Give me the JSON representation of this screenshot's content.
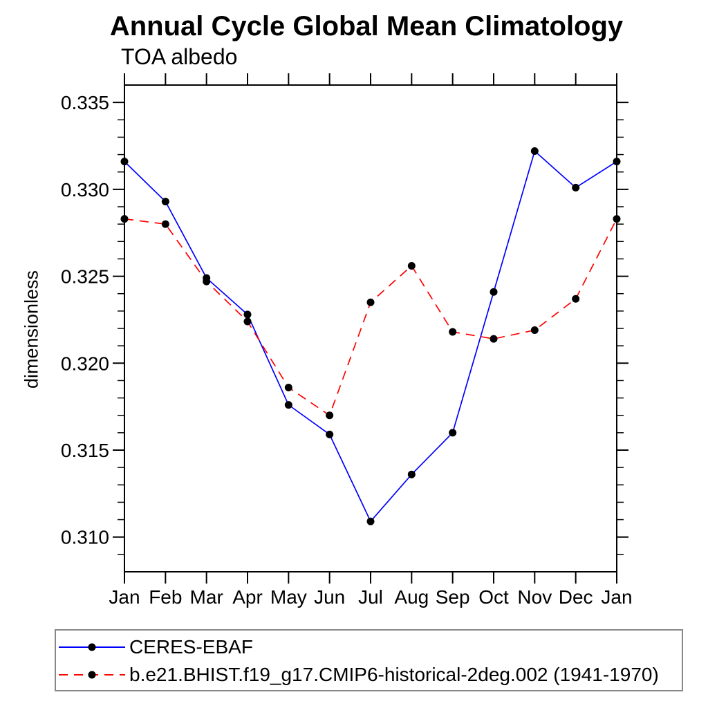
{
  "title": "Annual Cycle Global Mean Climatology",
  "subtitle": "TOA albedo",
  "ylabel": "dimensionless",
  "colors": {
    "obs_line": "#0000ff",
    "model_line": "#ff0000",
    "marker": "#000000",
    "axis": "#000000",
    "legend_border": "#888888",
    "background": "#ffffff"
  },
  "legend": {
    "items": [
      {
        "label": "CERES-EBAF",
        "color": "#0000ff",
        "style": "solid",
        "marker": "filled-circle"
      },
      {
        "label": "b.e21.BHIST.f19_g17.CMIP6-historical-2deg.002 (1941-1970)",
        "color": "#ff0000",
        "style": "dashed",
        "marker": "filled-circle"
      }
    ]
  },
  "chart_data": {
    "type": "line",
    "title": "Annual Cycle Global Mean Climatology",
    "subtitle_left": "TOA albedo",
    "xlabel": "",
    "ylabel": "dimensionless",
    "categories": [
      "Jan",
      "Feb",
      "Mar",
      "Apr",
      "May",
      "Jun",
      "Jul",
      "Aug",
      "Sep",
      "Oct",
      "Nov",
      "Dec",
      "Jan"
    ],
    "series": [
      {
        "name": "CERES-EBAF",
        "color": "#0000ff",
        "line_style": "solid",
        "marker": "filled-circle",
        "marker_color": "#000000",
        "values": [
          0.3316,
          0.3293,
          0.3249,
          0.3228,
          0.3176,
          0.3159,
          0.3109,
          0.3136,
          0.316,
          0.3241,
          0.3322,
          0.3301,
          0.3316
        ]
      },
      {
        "name": "b.e21.BHIST.f19_g17.CMIP6-historical-2deg.002 (1941-1970)",
        "color": "#ff0000",
        "line_style": "dashed",
        "marker": "filled-circle",
        "marker_color": "#000000",
        "values": [
          0.3283,
          0.328,
          0.3247,
          0.3224,
          0.3186,
          0.317,
          0.3235,
          0.3256,
          0.3218,
          0.3214,
          0.3219,
          0.3237,
          0.3283
        ]
      }
    ],
    "ylim": [
      0.308,
      0.336
    ],
    "ytick_major": [
      0.31,
      0.315,
      0.32,
      0.325,
      0.33,
      0.335
    ],
    "ytick_labels": [
      "0.310",
      "0.315",
      "0.320",
      "0.325",
      "0.330",
      "0.335"
    ],
    "ytick_minor_step": 0.001,
    "grid": false,
    "ticks": "outward-all-four-sides",
    "legend_position": "below-plot-boxed"
  }
}
